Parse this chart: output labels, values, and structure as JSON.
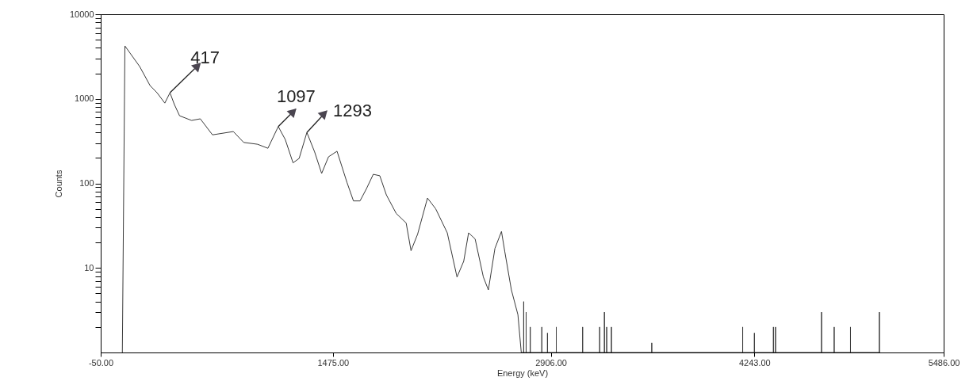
{
  "chart_data": {
    "type": "line",
    "xlabel": "Energy (keV)",
    "ylabel": "Counts",
    "log": true,
    "grid": false,
    "marker": "none",
    "xlim": [
      -50,
      5486
    ],
    "xticks": [
      {
        "value": -50,
        "label": "-50.00"
      },
      {
        "value": 1475,
        "label": "1475.00"
      },
      {
        "value": 2906,
        "label": "2906.00"
      },
      {
        "value": 4243,
        "label": "4243.00"
      },
      {
        "value": 5486,
        "label": "5486.00"
      }
    ],
    "ylim": [
      1,
      10000
    ],
    "yticks": [
      {
        "value": 2,
        "label": null
      },
      {
        "value": 3,
        "label": null
      },
      {
        "value": 4,
        "label": null
      },
      {
        "value": 5,
        "label": null
      },
      {
        "value": 6,
        "label": null
      },
      {
        "value": 7,
        "label": null
      },
      {
        "value": 8,
        "label": null
      },
      {
        "value": 9,
        "label": null
      },
      10,
      {
        "value": 20,
        "label": null
      },
      {
        "value": 30,
        "label": null
      },
      {
        "value": 40,
        "label": null
      },
      {
        "value": 50,
        "label": null
      },
      {
        "value": 60,
        "label": null
      },
      {
        "value": 70,
        "label": null
      },
      {
        "value": 80,
        "label": null
      },
      {
        "value": 90,
        "label": null
      },
      100,
      {
        "value": 200,
        "label": null
      },
      {
        "value": 300,
        "label": null
      },
      {
        "value": 400,
        "label": null
      },
      {
        "value": 500,
        "label": null
      },
      {
        "value": 600,
        "label": null
      },
      {
        "value": 700,
        "label": null
      },
      {
        "value": 800,
        "label": null
      },
      {
        "value": 900,
        "label": null
      },
      1000,
      {
        "value": 2000,
        "label": null
      },
      {
        "value": 3000,
        "label": null
      },
      {
        "value": 4000,
        "label": null
      },
      {
        "value": 5000,
        "label": null
      },
      {
        "value": 6000,
        "label": null
      },
      {
        "value": 7000,
        "label": null
      },
      {
        "value": 8000,
        "label": null
      },
      {
        "value": 9000,
        "label": null
      },
      10000
    ],
    "annotations": [
      {
        "text": "417",
        "x": 405,
        "y": 1180
      },
      {
        "text": "1097",
        "x": 1116,
        "y": 470
      },
      {
        "text": "1293",
        "x": 1304,
        "y": 400
      }
    ],
    "series": [
      {
        "color": "#3a3a3a",
        "x": [
          92,
          109,
          206,
          274,
          320,
          371,
          405,
          434,
          468,
          547,
          604,
          684,
          821,
          889,
          980,
          1048,
          1116,
          1162,
          1213,
          1253,
          1304,
          1355,
          1401,
          1446,
          1502,
          1567,
          1610,
          1653,
          1696,
          1740,
          1783,
          1826,
          1891,
          1956,
          1988,
          2031,
          2096,
          2150,
          2226,
          2290,
          2334,
          2366,
          2409,
          2463,
          2496,
          2539,
          2582,
          2604,
          2647,
          2690,
          2712,
          2728,
          2728,
          2728,
          2744,
          2744,
          2744,
          2771,
          2771,
          2771,
          2847,
          2847,
          2847,
          2884,
          2884,
          2884,
          2942,
          2942,
          2942,
          3115,
          3115,
          3115,
          3227,
          3227,
          3227,
          3258,
          3258,
          3258,
          3273,
          3273,
          3273,
          3304,
          3304,
          3304,
          3569,
          3569,
          3569,
          4166,
          4166,
          4166,
          4243,
          4243,
          4243,
          4368,
          4368,
          4368,
          4382,
          4382,
          4382,
          4684,
          4684,
          4684,
          4767,
          4767,
          4767,
          4874,
          4874,
          4874,
          5064,
          5064,
          5064
        ],
        "values": [
          1,
          4220,
          2410,
          1435,
          1180,
          890,
          1180,
          855,
          630,
          555,
          580,
          375,
          410,
          305,
          290,
          260,
          470,
          330,
          175,
          197,
          400,
          235,
          131,
          206,
          240,
          103,
          62,
          62,
          87,
          128,
          123,
          73,
          44,
          34,
          16,
          25,
          67,
          50,
          26,
          7.8,
          12,
          26,
          22,
          7.8,
          5.5,
          17,
          27,
          15.5,
          5.5,
          2.8,
          1,
          1,
          4,
          1,
          1,
          3,
          1,
          1,
          2,
          1,
          1,
          2,
          1,
          1,
          1.7,
          1,
          1,
          2,
          1,
          1,
          2,
          1,
          1,
          2,
          1,
          1,
          3,
          1,
          1,
          2,
          1,
          1,
          2,
          1,
          1,
          1.3,
          1,
          1,
          2,
          1,
          1,
          1.7,
          1,
          1,
          2,
          1,
          1,
          2,
          1,
          1,
          3,
          1,
          1,
          2,
          1,
          1,
          2,
          1,
          1,
          3,
          1
        ]
      }
    ]
  }
}
